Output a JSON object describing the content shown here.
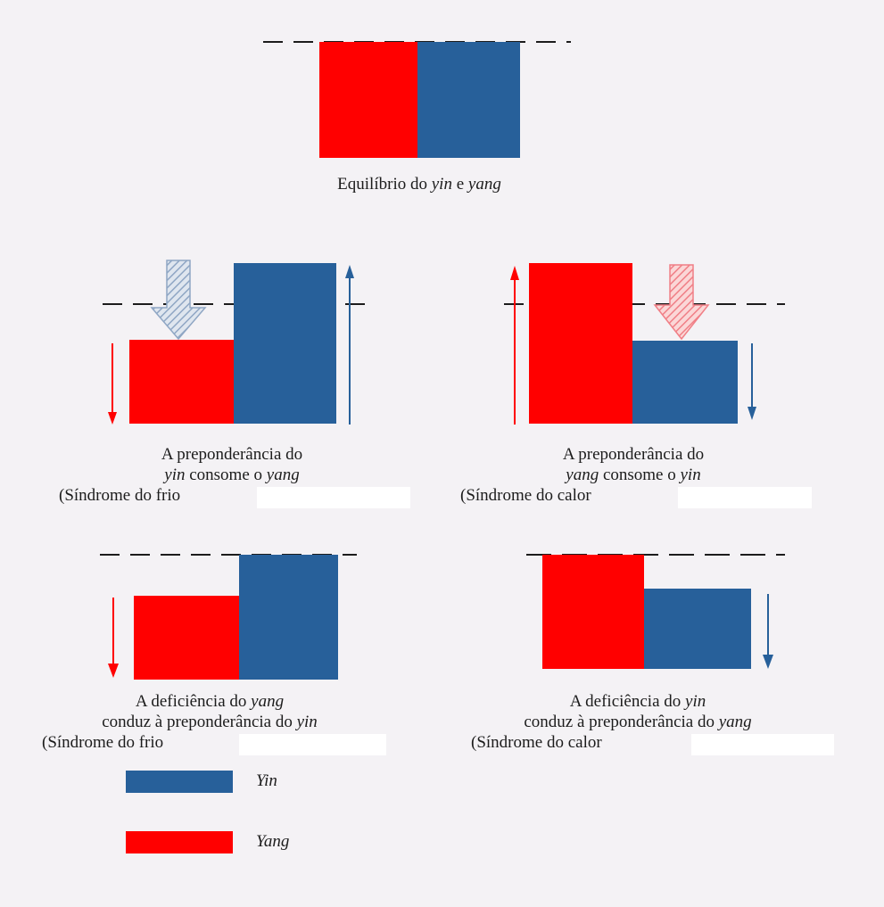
{
  "colors": {
    "yin": "#27609a",
    "yang": "#ff0000",
    "line": "#1c1c1c",
    "background": "#f4f2f5"
  },
  "panels": {
    "balance": {
      "yin_level": 1.0,
      "yang_level": 1.0,
      "caption": {
        "prefix": "Equilíbrio do ",
        "em1": "yin",
        "mid": " e ",
        "em2": "yang"
      }
    },
    "excess_yin": {
      "yin_level": 1.4,
      "yang_level": 0.75,
      "yin_arrow": "up",
      "yang_arrow": "down",
      "pressure_arrow": "yin-color",
      "caption": {
        "line1": "A preponderância do",
        "line2_em1": "yin",
        "line2_mid": " consome o ",
        "line2_em2": "yang",
        "line3": "(Síndrome do frio"
      }
    },
    "excess_yang": {
      "yin_level": 0.75,
      "yang_level": 1.4,
      "yin_arrow": "down",
      "yang_arrow": "up",
      "pressure_arrow": "yang-color",
      "caption": {
        "line1": "A preponderância do",
        "line2_em1": "yang",
        "line2_mid": " consome o ",
        "line2_em2": "yin",
        "line3": "(Síndrome do calor"
      }
    },
    "deficient_yang": {
      "yin_level": 1.0,
      "yang_level": 0.7,
      "yang_arrow": "down",
      "caption": {
        "line1_prefix": "A deficiência do ",
        "line1_em": "yang",
        "line2_prefix": "conduz à preponderância do ",
        "line2_em": "yin",
        "line3": "(Síndrome do frio"
      }
    },
    "deficient_yin": {
      "yin_level": 0.7,
      "yang_level": 1.0,
      "yin_arrow": "down",
      "caption": {
        "line1_prefix": "A deficiência do ",
        "line1_em": "yin",
        "line2_prefix": "conduz à preponderância do ",
        "line2_em": "yang",
        "line3": "(Síndrome do calor"
      }
    }
  },
  "legend": {
    "yin_label": "Yin",
    "yang_label": "Yang"
  }
}
